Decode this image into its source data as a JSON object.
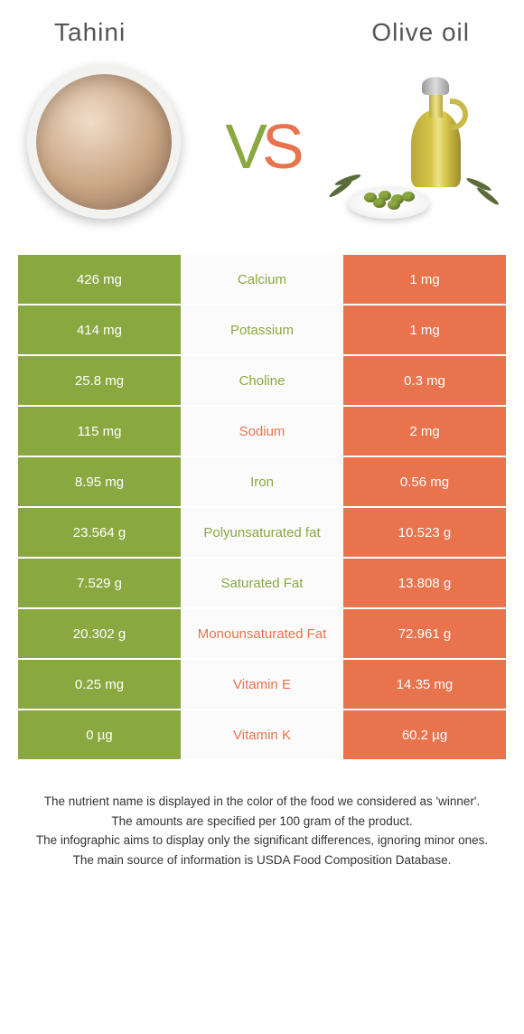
{
  "header": {
    "left_title": "Tahini",
    "right_title": "Olive oil"
  },
  "vs": {
    "v": "V",
    "s": "S"
  },
  "colors": {
    "green": "#8aa840",
    "orange": "#e8734d",
    "white": "#ffffff",
    "mid_bg": "#fbfbfb"
  },
  "rows": [
    {
      "left": "426 mg",
      "label": "Calcium",
      "winner": "green",
      "right": "1 mg"
    },
    {
      "left": "414 mg",
      "label": "Potassium",
      "winner": "green",
      "right": "1 mg"
    },
    {
      "left": "25.8 mg",
      "label": "Choline",
      "winner": "green",
      "right": "0.3 mg"
    },
    {
      "left": "115 mg",
      "label": "Sodium",
      "winner": "orange",
      "right": "2 mg"
    },
    {
      "left": "8.95 mg",
      "label": "Iron",
      "winner": "green",
      "right": "0.56 mg"
    },
    {
      "left": "23.564 g",
      "label": "Polyunsaturated fat",
      "winner": "green",
      "right": "10.523 g"
    },
    {
      "left": "7.529 g",
      "label": "Saturated Fat",
      "winner": "green",
      "right": "13.808 g"
    },
    {
      "left": "20.302 g",
      "label": "Monounsaturated Fat",
      "winner": "orange",
      "right": "72.961 g"
    },
    {
      "left": "0.25 mg",
      "label": "Vitamin E",
      "winner": "orange",
      "right": "14.35 mg"
    },
    {
      "left": "0 µg",
      "label": "Vitamin K",
      "winner": "orange",
      "right": "60.2 µg"
    }
  ],
  "footer": {
    "line1": "The nutrient name is displayed in the color of the food we considered as 'winner'.",
    "line2": "The amounts are specified per 100 gram of the product.",
    "line3": "The infographic aims to display only the significant differences, ignoring minor ones.",
    "line4": "The main source of information is USDA Food Composition Database."
  }
}
